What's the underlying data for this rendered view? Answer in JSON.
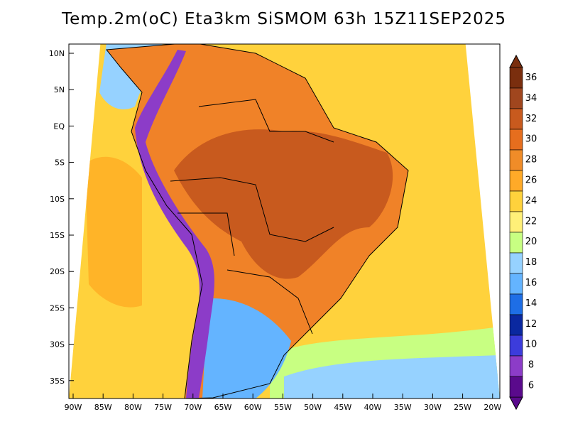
{
  "title": "Temp.2m(oC) Eta3km SiSMOM 63h 15Z11SEP2025",
  "map": {
    "lat_labels": [
      "10N",
      "5N",
      "EQ",
      "5S",
      "10S",
      "15S",
      "20S",
      "25S",
      "30S",
      "35S"
    ],
    "lon_labels": [
      "90W",
      "85W",
      "80W",
      "75W",
      "70W",
      "65W",
      "60W",
      "55W",
      "50W",
      "45W",
      "40W",
      "35W",
      "30W",
      "25W",
      "20W"
    ],
    "regions": [
      {
        "name": "ocean-domain",
        "color": "#ffd23c"
      },
      {
        "name": "pacific-warm",
        "color": "#ffb428"
      },
      {
        "name": "north-pacific-cool",
        "color": "#96d2ff"
      },
      {
        "name": "south-atlantic-cool",
        "color": "#c8ff82"
      },
      {
        "name": "south-atlantic-cold",
        "color": "#96d2ff"
      },
      {
        "name": "continent",
        "color": "#f08228"
      },
      {
        "name": "amazon-hot",
        "color": "#c85a1e"
      },
      {
        "name": "southern-cone",
        "color": "#64b4ff"
      },
      {
        "name": "andes-cold",
        "color": "#8c3cc8"
      }
    ]
  },
  "colorbar": {
    "labels": [
      "36",
      "34",
      "32",
      "30",
      "28",
      "26",
      "24",
      "22",
      "20",
      "18",
      "16",
      "14",
      "12",
      "10",
      "8",
      "6"
    ],
    "colors": [
      "#7a2e0e",
      "#a0461e",
      "#c85a1e",
      "#e66e1e",
      "#f08c28",
      "#ffaa28",
      "#ffd23c",
      "#fff078",
      "#c8ff82",
      "#96d2ff",
      "#64b4ff",
      "#1e6ee6",
      "#0a28a0",
      "#3c3cdc",
      "#8c3cc8",
      "#5a0a8c"
    ]
  }
}
